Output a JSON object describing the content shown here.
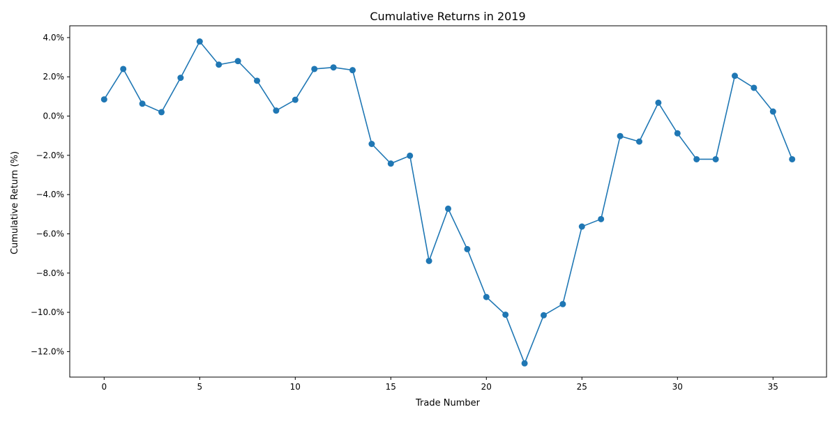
{
  "chart_data": {
    "type": "line",
    "title": "Cumulative Returns in 2019",
    "xlabel": "Trade Number",
    "ylabel": "Cumulative Return (%)",
    "xlim": [
      -1.8,
      37.8
    ],
    "ylim": [
      -13.3,
      4.6
    ],
    "x_ticks": [
      0,
      5,
      10,
      15,
      20,
      25,
      30,
      35
    ],
    "x_tick_labels": [
      "0",
      "5",
      "10",
      "15",
      "20",
      "25",
      "30",
      "35"
    ],
    "y_ticks": [
      4,
      2,
      0,
      -2,
      -4,
      -6,
      -8,
      -10,
      -12
    ],
    "y_tick_labels": [
      "4.0%",
      "2.0%",
      "0.0%",
      "−2.0%",
      "−4.0%",
      "−6.0%",
      "−8.0%",
      "−10.0%",
      "−12.0%"
    ],
    "grid": false,
    "legend": "none",
    "marker": "circle",
    "series": [
      {
        "color": "#1f77b4",
        "x": [
          0,
          1,
          2,
          3,
          4,
          5,
          6,
          7,
          8,
          9,
          10,
          11,
          12,
          13,
          14,
          15,
          16,
          17,
          18,
          19,
          20,
          21,
          22,
          23,
          24,
          25,
          26,
          27,
          28,
          29,
          30,
          31,
          32,
          33,
          34,
          35,
          36
        ],
        "values": [
          0.85,
          2.4,
          0.63,
          0.2,
          1.95,
          3.8,
          2.62,
          2.8,
          1.8,
          0.28,
          0.83,
          2.4,
          2.48,
          2.34,
          -1.42,
          -2.42,
          -2.02,
          -7.38,
          -4.72,
          -6.78,
          -9.22,
          -10.12,
          -12.6,
          -10.15,
          -9.58,
          -5.63,
          -5.25,
          -1.02,
          -1.3,
          0.68,
          -0.88,
          -2.2,
          -2.2,
          2.05,
          1.44,
          0.23,
          -2.2
        ]
      }
    ]
  }
}
